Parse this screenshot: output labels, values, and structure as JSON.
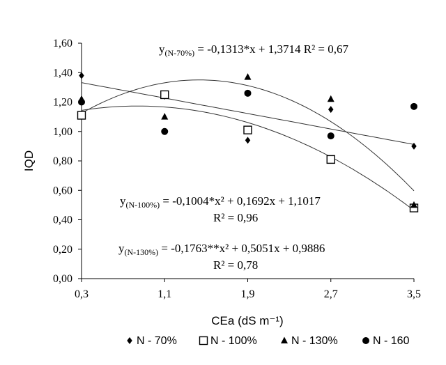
{
  "chart_data": {
    "type": "scatter",
    "xlabel": "CEa (dS m⁻¹)",
    "ylabel": "IQD",
    "x": [
      0.3,
      1.1,
      1.9,
      2.7,
      3.5
    ],
    "x_tick_labels": [
      "0,3",
      "1,1",
      "1,9",
      "2,7",
      "3,5"
    ],
    "ylim": [
      0,
      1.6
    ],
    "y_ticks": [
      0,
      0.2,
      0.4,
      0.6,
      0.8,
      1.0,
      1.2,
      1.4,
      1.6
    ],
    "y_tick_labels": [
      "0,00",
      "0,20",
      "0,40",
      "0,60",
      "0,80",
      "1,00",
      "1,20",
      "1,40",
      "1,60"
    ],
    "series": [
      {
        "name": "N - 70%",
        "marker": "diamond",
        "values": [
          1.38,
          1.24,
          0.94,
          1.15,
          0.9
        ]
      },
      {
        "name": "N - 100%",
        "marker": "square-open",
        "values": [
          1.11,
          1.25,
          1.01,
          0.81,
          0.48
        ]
      },
      {
        "name": "N - 130%",
        "marker": "triangle",
        "values": [
          1.22,
          1.1,
          1.37,
          1.22,
          0.5
        ]
      },
      {
        "name": "N - 160",
        "marker": "circle",
        "values": [
          1.2,
          1.0,
          1.26,
          0.97,
          1.17
        ]
      }
    ],
    "fits": [
      {
        "series": "N - 70%",
        "kind": "linear",
        "coef": [
          1.3714,
          -0.1313
        ]
      },
      {
        "series": "N - 100%",
        "kind": "quadratic",
        "coef": [
          1.1017,
          0.1692,
          -0.1004
        ]
      },
      {
        "series": "N - 130%",
        "kind": "quadratic",
        "coef": [
          0.9886,
          0.5051,
          -0.1763
        ]
      }
    ],
    "annotations": {
      "eq70": {
        "y": "y",
        "sub": "(N-70%)",
        "rest": " = -0,1313*x + 1,3714 R² = 0,67"
      },
      "eq100": {
        "y": "y",
        "sub": "(N-100%)",
        "rest": " = -0,1004*x² + 0,1692x + 1,1017"
      },
      "eq100_r2": "R² = 0,96",
      "eq130": {
        "y": "y",
        "sub": "(N-130%)",
        "rest": " = -0,1763**x² + 0,5051x + 0,9886"
      },
      "eq130_r2": "R² = 0,78"
    },
    "legend_position": "bottom",
    "grid": false
  }
}
